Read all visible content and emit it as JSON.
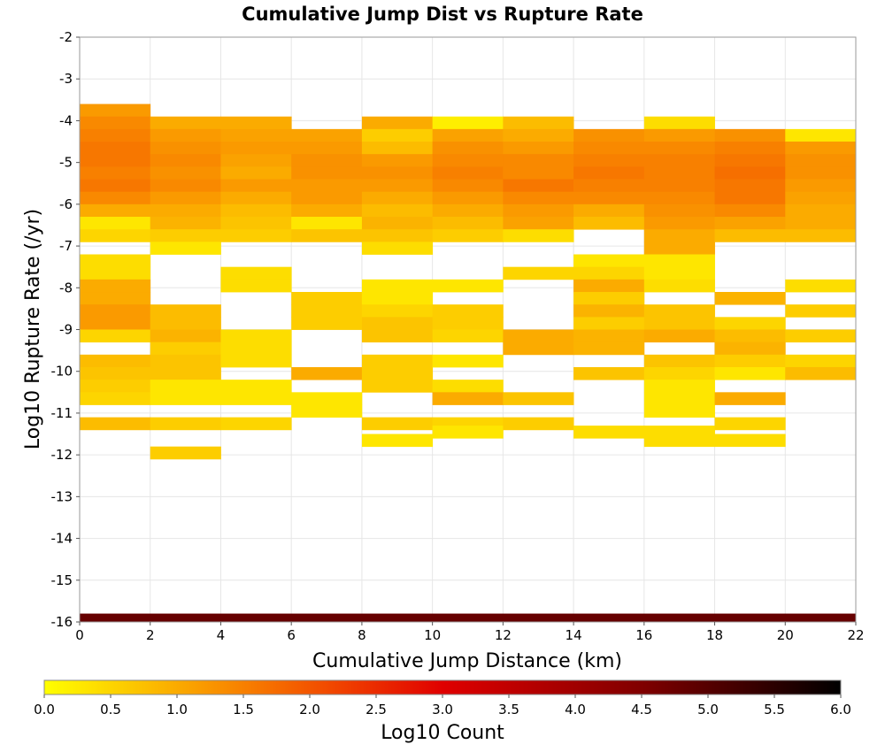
{
  "chart_data": {
    "type": "heatmap",
    "title": "Cumulative Jump Dist vs Rupture Rate",
    "xlabel": "Cumulative Jump Distance (km)",
    "ylabel": "Log10 Rupture Rate (/yr)",
    "xlim": [
      0,
      22
    ],
    "ylim": [
      -16,
      -2
    ],
    "x_ticks": [
      "0",
      "2",
      "4",
      "6",
      "8",
      "10",
      "12",
      "14",
      "16",
      "18",
      "20",
      "22"
    ],
    "y_ticks": [
      "-2",
      "-3",
      "-4",
      "-5",
      "-6",
      "-7",
      "-8",
      "-9",
      "-10",
      "-11",
      "-12",
      "-13",
      "-14",
      "-15",
      "-16"
    ],
    "grid": true,
    "x_bin_width": 2,
    "y_bin_height": 0.3,
    "colorbar": {
      "label": "Log10 Count",
      "range": [
        0,
        6
      ],
      "ticks": [
        "0.0",
        "0.5",
        "1.0",
        "1.5",
        "2.0",
        "2.5",
        "3.0",
        "3.5",
        "4.0",
        "4.5",
        "5.0",
        "5.5",
        "6.0"
      ],
      "stops": [
        "#ffff00",
        "#fcc000",
        "#f88000",
        "#f04000",
        "#e00000",
        "#b00000",
        "#800000",
        "#400000",
        "#000000"
      ]
    },
    "cells": [
      {
        "x0": 0,
        "columns": [
          {
            "y": -3.6,
            "v": 1.2
          },
          {
            "y": -3.9,
            "v": 1.4
          },
          {
            "y": -4.2,
            "v": 1.5
          },
          {
            "y": -4.5,
            "v": 1.6
          },
          {
            "y": -4.8,
            "v": 1.6
          },
          {
            "y": -5.1,
            "v": 1.5
          },
          {
            "y": -5.4,
            "v": 1.6
          },
          {
            "y": -5.7,
            "v": 1.4
          },
          {
            "y": -6.0,
            "v": 1.0
          },
          {
            "y": -6.3,
            "v": 0.3
          },
          {
            "y": -6.6,
            "v": 0.5
          },
          {
            "y": -7.2,
            "v": 0.4
          },
          {
            "y": -7.5,
            "v": 0.4
          },
          {
            "y": -7.8,
            "v": 1.0
          },
          {
            "y": -8.1,
            "v": 1.0
          },
          {
            "y": -8.4,
            "v": 1.2
          },
          {
            "y": -8.7,
            "v": 1.2
          },
          {
            "y": -9.0,
            "v": 0.5
          },
          {
            "y": -9.6,
            "v": 0.8
          },
          {
            "y": -9.9,
            "v": 0.7
          },
          {
            "y": -10.2,
            "v": 0.6
          },
          {
            "y": -10.5,
            "v": 0.5
          },
          {
            "y": -11.1,
            "v": 0.8
          }
        ]
      },
      {
        "x0": 2,
        "columns": [
          {
            "y": -3.9,
            "v": 1.0
          },
          {
            "y": -4.2,
            "v": 1.2
          },
          {
            "y": -4.5,
            "v": 1.3
          },
          {
            "y": -4.8,
            "v": 1.4
          },
          {
            "y": -5.1,
            "v": 1.3
          },
          {
            "y": -5.4,
            "v": 1.4
          },
          {
            "y": -5.7,
            "v": 1.2
          },
          {
            "y": -6.0,
            "v": 1.0
          },
          {
            "y": -6.3,
            "v": 0.9
          },
          {
            "y": -6.6,
            "v": 0.6
          },
          {
            "y": -6.9,
            "v": 0.3
          },
          {
            "y": -8.4,
            "v": 0.8
          },
          {
            "y": -8.7,
            "v": 0.8
          },
          {
            "y": -9.0,
            "v": 0.9
          },
          {
            "y": -9.3,
            "v": 0.6
          },
          {
            "y": -9.6,
            "v": 0.7
          },
          {
            "y": -9.9,
            "v": 0.7
          },
          {
            "y": -10.2,
            "v": 0.3
          },
          {
            "y": -10.5,
            "v": 0.3
          },
          {
            "y": -11.1,
            "v": 0.6
          },
          {
            "y": -11.8,
            "v": 0.6
          }
        ]
      },
      {
        "x0": 4,
        "columns": [
          {
            "y": -3.9,
            "v": 1.0
          },
          {
            "y": -4.2,
            "v": 1.1
          },
          {
            "y": -4.5,
            "v": 1.2
          },
          {
            "y": -4.8,
            "v": 1.1
          },
          {
            "y": -5.1,
            "v": 1.0
          },
          {
            "y": -5.4,
            "v": 1.2
          },
          {
            "y": -5.7,
            "v": 1.0
          },
          {
            "y": -6.0,
            "v": 0.8
          },
          {
            "y": -6.3,
            "v": 0.7
          },
          {
            "y": -6.6,
            "v": 0.6
          },
          {
            "y": -7.5,
            "v": 0.4
          },
          {
            "y": -7.8,
            "v": 0.4
          },
          {
            "y": -9.0,
            "v": 0.4
          },
          {
            "y": -9.3,
            "v": 0.4
          },
          {
            "y": -9.6,
            "v": 0.4
          },
          {
            "y": -10.2,
            "v": 0.3
          },
          {
            "y": -10.5,
            "v": 0.3
          },
          {
            "y": -11.1,
            "v": 0.5
          }
        ]
      },
      {
        "x0": 6,
        "columns": [
          {
            "y": -4.2,
            "v": 1.1
          },
          {
            "y": -4.5,
            "v": 1.2
          },
          {
            "y": -4.8,
            "v": 1.3
          },
          {
            "y": -5.1,
            "v": 1.3
          },
          {
            "y": -5.4,
            "v": 1.2
          },
          {
            "y": -5.7,
            "v": 1.2
          },
          {
            "y": -6.0,
            "v": 1.0
          },
          {
            "y": -6.3,
            "v": 0.3
          },
          {
            "y": -6.6,
            "v": 0.7
          },
          {
            "y": -8.1,
            "v": 0.6
          },
          {
            "y": -8.4,
            "v": 0.6
          },
          {
            "y": -8.7,
            "v": 0.6
          },
          {
            "y": -9.9,
            "v": 1.0
          },
          {
            "y": -10.5,
            "v": 0.3
          },
          {
            "y": -10.8,
            "v": 0.3
          }
        ]
      },
      {
        "x0": 8,
        "columns": [
          {
            "y": -3.9,
            "v": 1.0
          },
          {
            "y": -4.2,
            "v": 0.6
          },
          {
            "y": -4.5,
            "v": 0.8
          },
          {
            "y": -4.8,
            "v": 1.2
          },
          {
            "y": -5.1,
            "v": 1.3
          },
          {
            "y": -5.4,
            "v": 1.2
          },
          {
            "y": -5.7,
            "v": 1.0
          },
          {
            "y": -6.0,
            "v": 0.8
          },
          {
            "y": -6.3,
            "v": 0.9
          },
          {
            "y": -6.6,
            "v": 0.7
          },
          {
            "y": -6.9,
            "v": 0.4
          },
          {
            "y": -7.8,
            "v": 0.3
          },
          {
            "y": -8.1,
            "v": 0.3
          },
          {
            "y": -8.4,
            "v": 0.5
          },
          {
            "y": -8.7,
            "v": 0.7
          },
          {
            "y": -9.0,
            "v": 0.7
          },
          {
            "y": -9.6,
            "v": 0.6
          },
          {
            "y": -9.9,
            "v": 0.6
          },
          {
            "y": -10.2,
            "v": 0.6
          },
          {
            "y": -11.1,
            "v": 0.6
          },
          {
            "y": -11.5,
            "v": 0.3
          }
        ]
      },
      {
        "x0": 10,
        "columns": [
          {
            "y": -3.9,
            "v": 0.2
          },
          {
            "y": -4.2,
            "v": 1.1
          },
          {
            "y": -4.5,
            "v": 1.3
          },
          {
            "y": -4.8,
            "v": 1.4
          },
          {
            "y": -5.1,
            "v": 1.5
          },
          {
            "y": -5.4,
            "v": 1.4
          },
          {
            "y": -5.7,
            "v": 1.2
          },
          {
            "y": -6.0,
            "v": 1.0
          },
          {
            "y": -6.3,
            "v": 0.8
          },
          {
            "y": -6.6,
            "v": 0.6
          },
          {
            "y": -7.8,
            "v": 0.3
          },
          {
            "y": -8.4,
            "v": 0.6
          },
          {
            "y": -8.7,
            "v": 0.6
          },
          {
            "y": -9.0,
            "v": 0.5
          },
          {
            "y": -9.6,
            "v": 0.3
          },
          {
            "y": -10.2,
            "v": 0.4
          },
          {
            "y": -10.5,
            "v": 1.0
          },
          {
            "y": -11.1,
            "v": 0.5
          },
          {
            "y": -11.3,
            "v": 0.3
          }
        ]
      },
      {
        "x0": 12,
        "columns": [
          {
            "y": -3.9,
            "v": 0.8
          },
          {
            "y": -4.2,
            "v": 1.0
          },
          {
            "y": -4.5,
            "v": 1.2
          },
          {
            "y": -4.8,
            "v": 1.4
          },
          {
            "y": -5.1,
            "v": 1.4
          },
          {
            "y": -5.4,
            "v": 1.6
          },
          {
            "y": -5.7,
            "v": 1.4
          },
          {
            "y": -6.0,
            "v": 1.2
          },
          {
            "y": -6.3,
            "v": 1.1
          },
          {
            "y": -6.6,
            "v": 0.4
          },
          {
            "y": -7.5,
            "v": 0.5
          },
          {
            "y": -9.0,
            "v": 1.0
          },
          {
            "y": -9.3,
            "v": 1.0
          },
          {
            "y": -10.5,
            "v": 0.7
          },
          {
            "y": -11.1,
            "v": 0.6
          }
        ]
      },
      {
        "x0": 14,
        "columns": [
          {
            "y": -4.2,
            "v": 1.3
          },
          {
            "y": -4.5,
            "v": 1.4
          },
          {
            "y": -4.8,
            "v": 1.5
          },
          {
            "y": -5.1,
            "v": 1.6
          },
          {
            "y": -5.4,
            "v": 1.5
          },
          {
            "y": -5.7,
            "v": 1.4
          },
          {
            "y": -6.0,
            "v": 1.0
          },
          {
            "y": -6.3,
            "v": 0.8
          },
          {
            "y": -7.2,
            "v": 0.3
          },
          {
            "y": -7.5,
            "v": 0.5
          },
          {
            "y": -7.8,
            "v": 1.0
          },
          {
            "y": -8.1,
            "v": 0.6
          },
          {
            "y": -8.4,
            "v": 0.9
          },
          {
            "y": -8.7,
            "v": 0.6
          },
          {
            "y": -9.0,
            "v": 0.9
          },
          {
            "y": -9.3,
            "v": 0.9
          },
          {
            "y": -9.9,
            "v": 0.7
          },
          {
            "y": -11.3,
            "v": 0.4
          }
        ]
      },
      {
        "x0": 16,
        "columns": [
          {
            "y": -3.9,
            "v": 0.4
          },
          {
            "y": -4.2,
            "v": 1.2
          },
          {
            "y": -4.5,
            "v": 1.4
          },
          {
            "y": -4.8,
            "v": 1.5
          },
          {
            "y": -5.1,
            "v": 1.5
          },
          {
            "y": -5.4,
            "v": 1.5
          },
          {
            "y": -5.7,
            "v": 1.4
          },
          {
            "y": -6.0,
            "v": 1.3
          },
          {
            "y": -6.3,
            "v": 1.2
          },
          {
            "y": -6.6,
            "v": 1.0
          },
          {
            "y": -6.9,
            "v": 1.0
          },
          {
            "y": -7.2,
            "v": 0.3
          },
          {
            "y": -7.5,
            "v": 0.3
          },
          {
            "y": -7.8,
            "v": 0.4
          },
          {
            "y": -8.4,
            "v": 0.7
          },
          {
            "y": -8.7,
            "v": 0.7
          },
          {
            "y": -9.0,
            "v": 1.0
          },
          {
            "y": -9.6,
            "v": 0.7
          },
          {
            "y": -9.9,
            "v": 0.5
          },
          {
            "y": -10.2,
            "v": 0.3
          },
          {
            "y": -10.5,
            "v": 0.3
          },
          {
            "y": -10.8,
            "v": 0.3
          },
          {
            "y": -11.3,
            "v": 0.4
          },
          {
            "y": -11.5,
            "v": 0.4
          }
        ]
      },
      {
        "x0": 18,
        "columns": [
          {
            "y": -4.2,
            "v": 1.3
          },
          {
            "y": -4.5,
            "v": 1.5
          },
          {
            "y": -4.8,
            "v": 1.6
          },
          {
            "y": -5.1,
            "v": 1.7
          },
          {
            "y": -5.4,
            "v": 1.6
          },
          {
            "y": -5.7,
            "v": 1.6
          },
          {
            "y": -6.0,
            "v": 1.4
          },
          {
            "y": -6.3,
            "v": 1.1
          },
          {
            "y": -6.6,
            "v": 0.8
          },
          {
            "y": -8.1,
            "v": 0.9
          },
          {
            "y": -8.7,
            "v": 0.5
          },
          {
            "y": -9.0,
            "v": 0.8
          },
          {
            "y": -9.3,
            "v": 0.9
          },
          {
            "y": -9.6,
            "v": 0.6
          },
          {
            "y": -9.9,
            "v": 0.3
          },
          {
            "y": -10.5,
            "v": 1.0
          },
          {
            "y": -11.1,
            "v": 0.5
          },
          {
            "y": -11.5,
            "v": 0.4
          }
        ]
      },
      {
        "x0": 20,
        "columns": [
          {
            "y": -4.2,
            "v": 0.3
          },
          {
            "y": -4.5,
            "v": 1.2
          },
          {
            "y": -4.8,
            "v": 1.3
          },
          {
            "y": -5.1,
            "v": 1.3
          },
          {
            "y": -5.4,
            "v": 1.2
          },
          {
            "y": -5.7,
            "v": 1.1
          },
          {
            "y": -6.0,
            "v": 1.0
          },
          {
            "y": -6.3,
            "v": 1.0
          },
          {
            "y": -6.6,
            "v": 0.8
          },
          {
            "y": -7.8,
            "v": 0.4
          },
          {
            "y": -8.4,
            "v": 0.6
          },
          {
            "y": -9.0,
            "v": 0.6
          },
          {
            "y": -9.6,
            "v": 0.5
          },
          {
            "y": -9.9,
            "v": 0.8
          }
        ]
      }
    ],
    "bottom_row": {
      "y": -16,
      "height": 0.2,
      "x_range": [
        0,
        22
      ],
      "v": 4.8
    }
  }
}
